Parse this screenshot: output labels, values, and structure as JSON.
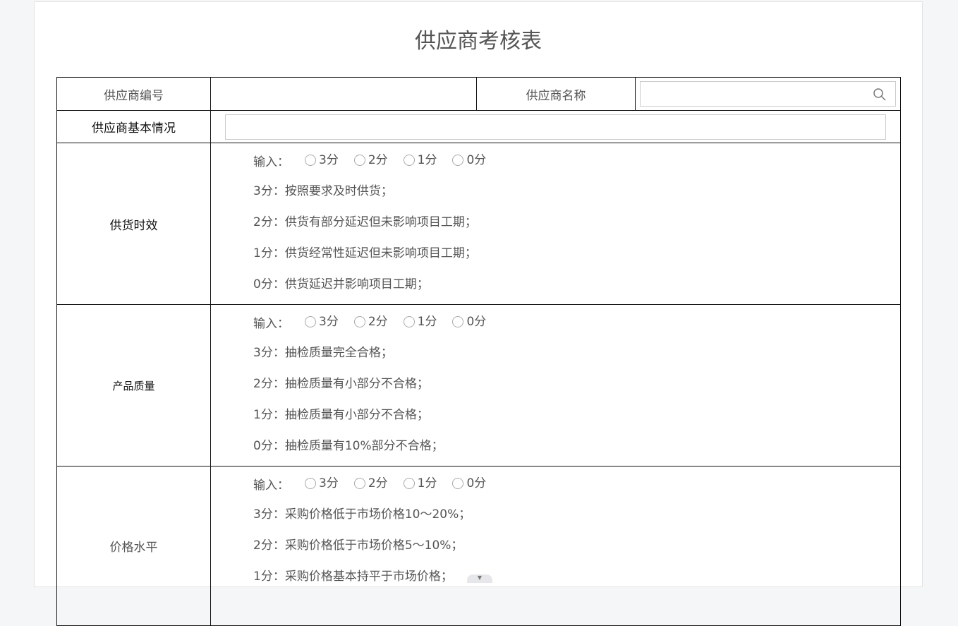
{
  "title": "供应商考核表",
  "header": {
    "supplier_id_label": "供应商编号",
    "supplier_id_value": "",
    "supplier_name_label": "供应商名称",
    "supplier_name_value": "",
    "basic_info_label": "供应商基本情况",
    "basic_info_value": ""
  },
  "sections": [
    {
      "label": "供货时效",
      "input_label": "输入：",
      "options": [
        "3分",
        "2分",
        "1分",
        "0分"
      ],
      "criteria": [
        "3分：按照要求及时供货；",
        "2分：供货有部分延迟但未影响项目工期；",
        "1分：供货经常性延迟但未影响项目工期；",
        "0分：供货延迟并影响项目工期；"
      ]
    },
    {
      "label": "产品质量",
      "input_label": "输入：",
      "options": [
        "3分",
        "2分",
        "1分",
        "0分"
      ],
      "criteria": [
        "3分：抽检质量完全合格；",
        "2分：抽检质量有小部分不合格；",
        "1分：抽检质量有小部分不合格；",
        "0分：抽检质量有10%部分不合格；"
      ]
    },
    {
      "label": "价格水平",
      "input_label": "输入：",
      "options": [
        "3分",
        "2分",
        "1分",
        "0分"
      ],
      "criteria": [
        "3分：采购价格低于市场价格10～20%；",
        "2分：采购价格低于市场价格5～10%；",
        "1分：采购价格基本持平于市场价格；"
      ]
    }
  ]
}
